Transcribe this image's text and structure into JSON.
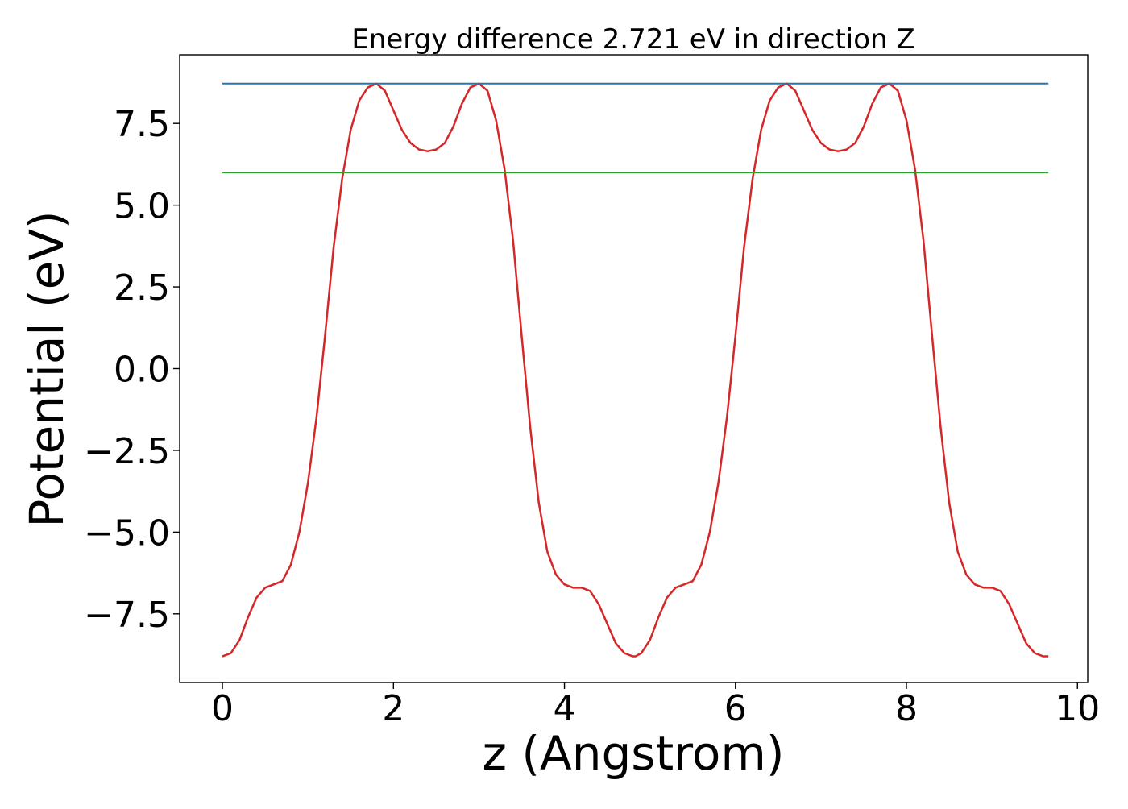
{
  "chart_data": {
    "type": "line",
    "title": "Energy difference 2.721 eV in direction Z",
    "xlabel": "z (Angstrom)",
    "ylabel": "Potential (eV)",
    "xlim": [
      -0.5,
      10.12
    ],
    "ylim": [
      -9.6,
      9.6
    ],
    "xticks": [
      0,
      2,
      4,
      6,
      8,
      10
    ],
    "xtick_labels": [
      "0",
      "2",
      "4",
      "6",
      "8",
      "10"
    ],
    "yticks": [
      -7.5,
      -5.0,
      -2.5,
      0.0,
      2.5,
      5.0,
      7.5
    ],
    "ytick_labels": [
      "−7.5",
      "−5.0",
      "−2.5",
      "0.0",
      "2.5",
      "5.0",
      "7.5"
    ],
    "grid": false,
    "legend": null,
    "series": [
      {
        "color": "#d62728",
        "kind": "curve",
        "x": [
          0.0,
          0.1,
          0.2,
          0.3,
          0.4,
          0.5,
          0.6,
          0.7,
          0.8,
          0.9,
          1.0,
          1.1,
          1.2,
          1.3,
          1.4,
          1.5,
          1.6,
          1.7,
          1.8,
          1.9,
          2.0,
          2.1,
          2.2,
          2.3,
          2.4,
          2.5,
          2.6,
          2.7,
          2.8,
          2.9,
          3.0,
          3.1,
          3.2,
          3.3,
          3.4,
          3.5,
          3.6,
          3.7,
          3.8,
          3.9,
          4.0,
          4.1,
          4.2,
          4.3,
          4.4,
          4.5,
          4.6,
          4.7,
          4.8,
          4.83,
          4.9,
          5.0,
          5.1,
          5.2,
          5.3,
          5.4,
          5.5,
          5.6,
          5.7,
          5.8,
          5.9,
          6.0,
          6.1,
          6.2,
          6.3,
          6.4,
          6.5,
          6.6,
          6.7,
          6.8,
          6.9,
          7.0,
          7.1,
          7.2,
          7.3,
          7.4,
          7.5,
          7.6,
          7.7,
          7.8,
          7.9,
          8.0,
          8.1,
          8.2,
          8.3,
          8.4,
          8.5,
          8.6,
          8.7,
          8.8,
          8.9,
          9.0,
          9.1,
          9.2,
          9.3,
          9.4,
          9.5,
          9.6,
          9.66
        ],
        "y": [
          -8.8,
          -8.7,
          -8.3,
          -7.6,
          -7.0,
          -6.7,
          -6.6,
          -6.5,
          -6.0,
          -5.0,
          -3.5,
          -1.5,
          1.0,
          3.7,
          5.8,
          7.3,
          8.2,
          8.6,
          8.72,
          8.5,
          7.9,
          7.3,
          6.9,
          6.7,
          6.65,
          6.7,
          6.9,
          7.4,
          8.1,
          8.6,
          8.72,
          8.5,
          7.6,
          6.1,
          3.9,
          1.0,
          -1.8,
          -4.1,
          -5.6,
          -6.3,
          -6.6,
          -6.7,
          -6.7,
          -6.8,
          -7.2,
          -7.8,
          -8.4,
          -8.7,
          -8.8,
          -8.8,
          -8.7,
          -8.3,
          -7.6,
          -7.0,
          -6.7,
          -6.6,
          -6.5,
          -6.0,
          -5.0,
          -3.5,
          -1.5,
          1.0,
          3.7,
          5.8,
          7.3,
          8.2,
          8.6,
          8.72,
          8.5,
          7.9,
          7.3,
          6.9,
          6.7,
          6.65,
          6.7,
          6.9,
          7.4,
          8.1,
          8.6,
          8.72,
          8.5,
          7.6,
          6.1,
          3.9,
          1.0,
          -1.8,
          -4.1,
          -5.6,
          -6.3,
          -6.6,
          -6.7,
          -6.7,
          -6.8,
          -7.2,
          -7.8,
          -8.4,
          -8.7,
          -8.8,
          -8.8
        ]
      },
      {
        "color": "#1f77b4",
        "kind": "hline",
        "x": [
          0.0,
          9.66
        ],
        "y": [
          8.72,
          8.72
        ]
      },
      {
        "color": "#2ca02c",
        "kind": "hline",
        "x": [
          0.0,
          9.66
        ],
        "y": [
          5.999,
          5.999
        ]
      }
    ]
  }
}
